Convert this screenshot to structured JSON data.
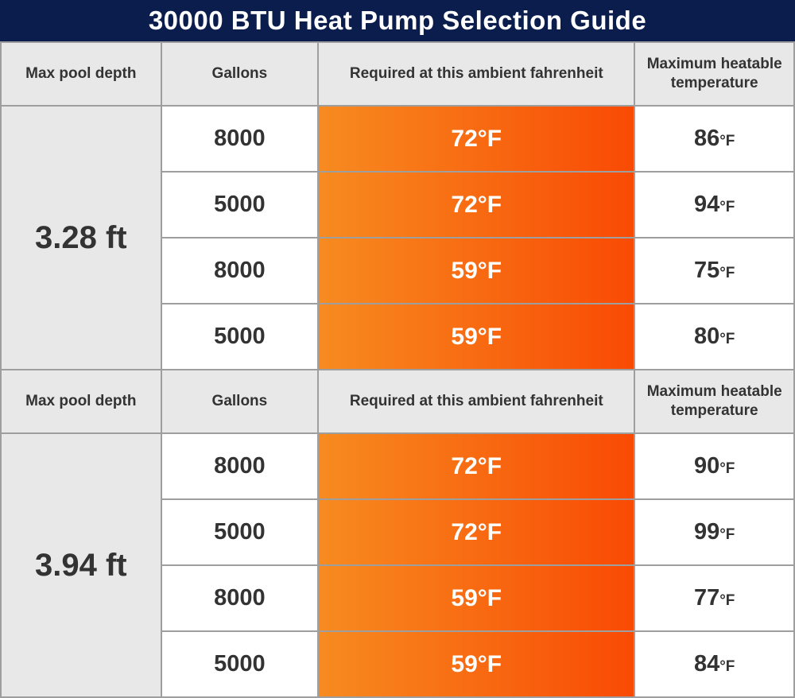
{
  "title": "30000 BTU Heat Pump Selection Guide",
  "columns": {
    "depth": "Max pool depth",
    "gallons": "Gallons",
    "ambient": "Required at this ambient fahrenheit",
    "max": "Maximum heatable temperature"
  },
  "colors": {
    "title_bg": "#0a1d4d",
    "header_bg": "#e8e8e8",
    "grid_border": "#9e9e9e",
    "orange_left": "#f78b20",
    "orange_right": "#f94a04",
    "text_dark": "#333333",
    "bottom_border": "#14203e"
  },
  "sections": [
    {
      "depth": "3.28 ft",
      "rows": [
        {
          "gallons": "8000",
          "ambient": "72°F",
          "max_value": "86",
          "max_unit": "°F"
        },
        {
          "gallons": "5000",
          "ambient": "72°F",
          "max_value": "94",
          "max_unit": "°F"
        },
        {
          "gallons": "8000",
          "ambient": "59°F",
          "max_value": "75",
          "max_unit": "°F"
        },
        {
          "gallons": "5000",
          "ambient": "59°F",
          "max_value": "80",
          "max_unit": "°F"
        }
      ]
    },
    {
      "depth": "3.94 ft",
      "rows": [
        {
          "gallons": "8000",
          "ambient": "72°F",
          "max_value": "90",
          "max_unit": "°F"
        },
        {
          "gallons": "5000",
          "ambient": "72°F",
          "max_value": "99",
          "max_unit": "°F"
        },
        {
          "gallons": "8000",
          "ambient": "59°F",
          "max_value": "77",
          "max_unit": "°F"
        },
        {
          "gallons": "5000",
          "ambient": "59°F",
          "max_value": "84",
          "max_unit": "°F"
        }
      ]
    }
  ],
  "chart_data": {
    "type": "table",
    "title": "30000 BTU Heat Pump Selection Guide",
    "columns": [
      "Max pool depth",
      "Gallons",
      "Required at this ambient fahrenheit",
      "Maximum heatable temperature"
    ],
    "rows": [
      [
        "3.28 ft",
        8000,
        "72°F",
        "86°F"
      ],
      [
        "3.28 ft",
        5000,
        "72°F",
        "94°F"
      ],
      [
        "3.28 ft",
        8000,
        "59°F",
        "75°F"
      ],
      [
        "3.28 ft",
        5000,
        "59°F",
        "80°F"
      ],
      [
        "3.94 ft",
        8000,
        "72°F",
        "90°F"
      ],
      [
        "3.94 ft",
        5000,
        "72°F",
        "99°F"
      ],
      [
        "3.94 ft",
        8000,
        "59°F",
        "77°F"
      ],
      [
        "3.94 ft",
        5000,
        "59°F",
        "84°F"
      ]
    ]
  }
}
